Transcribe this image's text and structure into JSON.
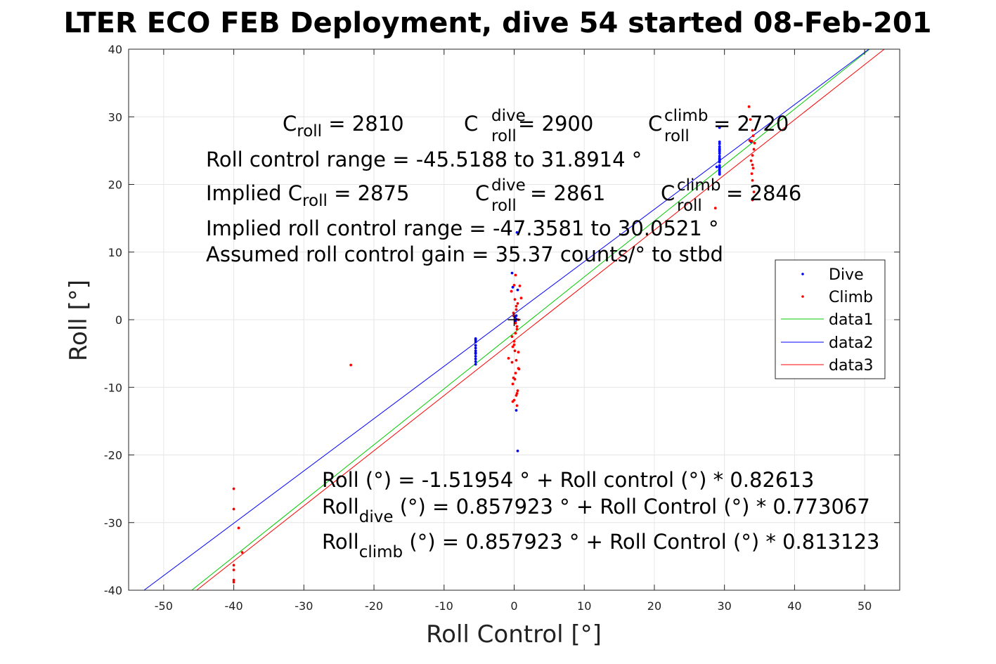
{
  "chart_data": {
    "type": "scatter",
    "title": "LTER ECO FEB Deployment, dive 54 started 08-Feb-201",
    "xlabel": "Roll Control [°]",
    "ylabel": "Roll [°]",
    "xlim": [
      -55,
      55
    ],
    "ylim": [
      -40,
      40
    ],
    "xticks": [
      -50,
      -40,
      -30,
      -20,
      -10,
      0,
      10,
      20,
      30,
      40,
      50
    ],
    "yticks": [
      -40,
      -30,
      -20,
      -10,
      0,
      10,
      20,
      30,
      40
    ],
    "grid": true,
    "legend_position": "right",
    "colors": {
      "dive": "#0000ff",
      "climb": "#ff0000",
      "data1": "#00cc00",
      "data2": "#0000ff",
      "data3": "#ff0000"
    },
    "series": [
      {
        "name": "Dive",
        "kind": "points",
        "x": [
          -5.5,
          -5.5,
          -5.5,
          -5.5,
          -5.5,
          -5.5,
          -5.5,
          -5.5,
          -5.5,
          -5.5,
          -5.5,
          -5.5,
          -0.3,
          -0.2,
          0.1,
          0.2,
          0.3,
          0.5,
          0.4,
          0.3,
          0.5,
          0.3,
          28.9,
          29.3,
          29.3,
          29.3,
          29.3,
          29.3,
          29.3,
          29.3,
          29.3,
          29.3,
          29.3,
          29.3,
          29.3,
          29.3,
          29.3,
          29.3,
          29.3,
          29.3,
          29.3,
          29.3,
          29.3,
          33.8
        ],
        "y": [
          -2.8,
          -3.3,
          -3.8,
          -4.2,
          -4.6,
          -5.0,
          -5.4,
          -5.8,
          -6.2,
          -6.6,
          -3.0,
          -4.9,
          6.9,
          4.8,
          0.4,
          -0.2,
          0.6,
          4.4,
          12.9,
          -13.4,
          -19.4,
          0.1,
          22.6,
          28.4,
          26.0,
          25.6,
          25.1,
          24.6,
          24.2,
          23.7,
          23.3,
          22.8,
          22.4,
          21.9,
          21.5,
          24.9,
          23.5,
          22.2,
          26.3,
          25.3,
          23.9,
          22.6,
          21.7,
          26.3
        ]
      },
      {
        "name": "Climb",
        "kind": "points",
        "x": [
          -40,
          -40,
          -40,
          -40,
          -40,
          -40,
          -39.3,
          -38.8,
          -23.3,
          -0.8,
          -0.3,
          -0.2,
          0.0,
          0.2,
          0.4,
          0.6,
          -0.1,
          0.3,
          0.1,
          -0.4,
          0.0,
          0.2,
          -0.1,
          0.5,
          0.3,
          0.0,
          -0.2,
          0.4,
          0.6,
          0.1,
          0.8,
          1.0,
          0.5,
          0.3,
          -0.1,
          0.2,
          0.4,
          -0.3,
          0.0,
          0.6,
          0.3,
          0.7,
          0.1,
          -0.2,
          0.4,
          0.2,
          28.7,
          33.5,
          33.7,
          34.0,
          34.1,
          33.9,
          34.2,
          34.0,
          33.8,
          34.0,
          34.1,
          33.9,
          34.0,
          34.2,
          34.0,
          33.6,
          34.3
        ],
        "y": [
          -25.0,
          -28.0,
          -36.3,
          -37.0,
          -38.5,
          -38.8,
          -30.8,
          -34.4,
          -6.7,
          -5.7,
          -6.3,
          -4.0,
          -3.2,
          -2.0,
          -1.0,
          0.0,
          1.0,
          2.0,
          3.0,
          4.2,
          5.1,
          6.6,
          -8.6,
          -10.5,
          -11.2,
          -11.9,
          -12.1,
          -12.7,
          -7.2,
          -4.6,
          5.0,
          3.2,
          2.4,
          1.5,
          0.6,
          -0.5,
          -1.4,
          -2.5,
          -3.7,
          -4.8,
          -6.0,
          -7.3,
          -8.8,
          -9.5,
          -10.9,
          -7.9,
          16.5,
          31.5,
          29.6,
          28.0,
          27.2,
          26.4,
          25.2,
          24.3,
          23.5,
          22.9,
          22.4,
          21.6,
          20.6,
          18.9,
          17.7,
          26.5,
          26.1
        ]
      },
      {
        "name": "data1",
        "kind": "line",
        "x": [
          -46.0,
          50.7
        ],
        "y": [
          -40.0,
          40.0
        ]
      },
      {
        "name": "data2",
        "kind": "line",
        "x": [
          -52.8,
          50.6
        ],
        "y": [
          -40.0,
          40.0
        ]
      },
      {
        "name": "data3",
        "kind": "line",
        "x": [
          -45.3,
          52.8
        ],
        "y": [
          -40.0,
          40.0
        ]
      }
    ],
    "marker": {
      "x": [
        0.0
      ],
      "y": [
        0.0
      ],
      "symbol": "+"
    },
    "legend": [
      "Dive",
      "Climb",
      "data1",
      "data2",
      "data3"
    ],
    "annotations": {
      "line1": {
        "a": {
          "base": "C",
          "sub": "roll",
          "rest": " = 2810"
        },
        "b": {
          "base": "C",
          "sup": "dive",
          "sub": "roll",
          "rest": " = 2900"
        },
        "c": {
          "base": "C",
          "sup": "climb",
          "sub": "roll",
          "rest": " = 2720"
        }
      },
      "line2": "Roll control range = -45.5188 to 31.8914 °",
      "line3": {
        "a": {
          "base": "Implied C",
          "sub": "roll",
          "rest": " = 2875"
        },
        "b": {
          "base": "C",
          "sup": "dive",
          "sub": "roll",
          "rest": " = 2861"
        },
        "c": {
          "base": "C",
          "sup": "climb",
          "sub": "roll",
          "rest": " = 2846"
        }
      },
      "line4": "Implied roll control range = -47.3581 to 30.0521 °",
      "line5": "Assumed roll control gain = 35.37 counts/° to stbd",
      "fit1": "Roll (°) = -1.51954 ° + Roll control (°) * 0.82613",
      "fit2": {
        "base": "Roll",
        "sub": "dive",
        "rest": " (°) = 0.857923 ° + Roll Control (°) * 0.773067"
      },
      "fit3": {
        "base": "Roll",
        "sub": "climb",
        "rest": " (°) = 0.857923 ° + Roll Control (°) * 0.813123"
      }
    }
  }
}
